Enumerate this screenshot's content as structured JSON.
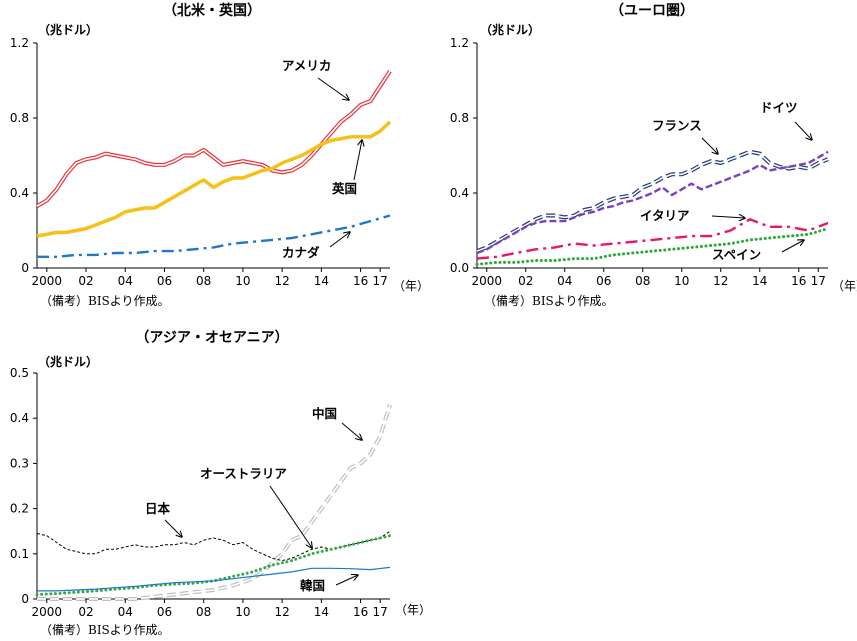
{
  "chart_data": [
    {
      "type": "line",
      "title": "（北米・英国）",
      "ylabel": "（兆ドル）",
      "xunit": "（年）",
      "note": "（備考）BISより作成。",
      "ylim": [
        0,
        1.2
      ],
      "yticks": [
        "0",
        "0.4",
        "0.8",
        "1.2"
      ],
      "yticks_v": [
        0,
        0.4,
        0.8,
        1.2
      ],
      "xlim": [
        1999.5,
        2017.5
      ],
      "xticks": [
        "2000",
        "02",
        "04",
        "06",
        "08",
        "10",
        "12",
        "14",
        "16",
        "17"
      ],
      "xticks_v": [
        2000,
        2002,
        2004,
        2006,
        2008,
        2010,
        2012,
        2014,
        2016,
        2017
      ],
      "series": [
        {
          "name": "アメリカ",
          "color": "#e8353b",
          "style": "double",
          "x": [
            1999.5,
            2000,
            2000.5,
            2001,
            2001.5,
            2002,
            2002.5,
            2003,
            2003.5,
            2004,
            2004.5,
            2005,
            2005.5,
            2006,
            2006.5,
            2007,
            2007.5,
            2008,
            2008.5,
            2009,
            2009.5,
            2010,
            2010.5,
            2011,
            2011.5,
            2012,
            2012.5,
            2013,
            2013.5,
            2014,
            2014.5,
            2015,
            2015.5,
            2016,
            2016.5,
            2017,
            2017.5
          ],
          "y": [
            0.33,
            0.36,
            0.42,
            0.5,
            0.56,
            0.58,
            0.59,
            0.61,
            0.6,
            0.59,
            0.58,
            0.56,
            0.55,
            0.55,
            0.57,
            0.6,
            0.6,
            0.63,
            0.59,
            0.55,
            0.56,
            0.57,
            0.56,
            0.55,
            0.52,
            0.51,
            0.52,
            0.55,
            0.6,
            0.66,
            0.72,
            0.78,
            0.82,
            0.87,
            0.89,
            0.97,
            1.05
          ]
        },
        {
          "name": "英国",
          "color": "#f5c116",
          "style": "thick",
          "x": [
            1999.5,
            2000,
            2000.5,
            2001,
            2001.5,
            2002,
            2002.5,
            2003,
            2003.5,
            2004,
            2004.5,
            2005,
            2005.5,
            2006,
            2006.5,
            2007,
            2007.5,
            2008,
            2008.5,
            2009,
            2009.5,
            2010,
            2010.5,
            2011,
            2011.5,
            2012,
            2012.5,
            2013,
            2013.5,
            2014,
            2014.5,
            2015,
            2015.5,
            2016,
            2016.5,
            2017,
            2017.5
          ],
          "y": [
            0.17,
            0.18,
            0.19,
            0.19,
            0.2,
            0.21,
            0.23,
            0.25,
            0.27,
            0.3,
            0.31,
            0.32,
            0.32,
            0.35,
            0.38,
            0.41,
            0.44,
            0.47,
            0.43,
            0.46,
            0.48,
            0.48,
            0.5,
            0.52,
            0.53,
            0.56,
            0.58,
            0.6,
            0.63,
            0.66,
            0.68,
            0.69,
            0.7,
            0.7,
            0.7,
            0.73,
            0.78
          ]
        },
        {
          "name": "カナダ",
          "color": "#1f77c8",
          "style": "dashdot",
          "x": [
            1999.5,
            2000.5,
            2001.5,
            2002.5,
            2003.5,
            2004.5,
            2005.5,
            2006.5,
            2007.5,
            2008.5,
            2009.5,
            2010.5,
            2011.5,
            2012.5,
            2013.5,
            2014.5,
            2015.5,
            2016.5,
            2017.5
          ],
          "y": [
            0.06,
            0.06,
            0.07,
            0.07,
            0.08,
            0.08,
            0.09,
            0.09,
            0.1,
            0.11,
            0.13,
            0.14,
            0.15,
            0.16,
            0.18,
            0.2,
            0.22,
            0.25,
            0.28
          ]
        }
      ],
      "annotations": [
        "アメリカ",
        "英国",
        "カナダ"
      ]
    },
    {
      "type": "line",
      "title": "（ユーロ圏）",
      "ylabel": "（兆ドル）",
      "xunit": "（年）",
      "note": "（備考）BISより作成。",
      "ylim": [
        0,
        1.2
      ],
      "yticks": [
        "0.0",
        "0.4",
        "0.8",
        "1.2"
      ],
      "yticks_v": [
        0,
        0.4,
        0.8,
        1.2
      ],
      "xlim": [
        1999.5,
        2017.5
      ],
      "xticks": [
        "2000",
        "02",
        "04",
        "06",
        "08",
        "10",
        "12",
        "14",
        "16",
        "17"
      ],
      "xticks_v": [
        2000,
        2002,
        2004,
        2006,
        2008,
        2010,
        2012,
        2014,
        2016,
        2017
      ],
      "series": [
        {
          "name": "フランス",
          "color": "#1f3a7a",
          "style": "hollowdash",
          "x": [
            1999.5,
            2000,
            2000.5,
            2001,
            2001.5,
            2002,
            2002.5,
            2003,
            2003.5,
            2004,
            2004.5,
            2005,
            2005.5,
            2006,
            2006.5,
            2007,
            2007.5,
            2008,
            2008.5,
            2009,
            2009.5,
            2010,
            2010.5,
            2011,
            2011.5,
            2012,
            2012.5,
            2013,
            2013.5,
            2014,
            2014.5,
            2015,
            2015.5,
            2016,
            2016.5,
            2017,
            2017.5
          ],
          "y": [
            0.09,
            0.11,
            0.14,
            0.17,
            0.2,
            0.23,
            0.26,
            0.28,
            0.28,
            0.27,
            0.28,
            0.31,
            0.32,
            0.35,
            0.37,
            0.38,
            0.39,
            0.43,
            0.45,
            0.48,
            0.5,
            0.5,
            0.52,
            0.55,
            0.57,
            0.56,
            0.58,
            0.6,
            0.62,
            0.61,
            0.56,
            0.54,
            0.53,
            0.54,
            0.53,
            0.56,
            0.58
          ]
        },
        {
          "name": "ドイツ",
          "color": "#7b3fbf",
          "style": "dash",
          "x": [
            1999.5,
            2000,
            2000.5,
            2001,
            2001.5,
            2002,
            2002.5,
            2003,
            2003.5,
            2004,
            2004.5,
            2005,
            2005.5,
            2006,
            2006.5,
            2007,
            2007.5,
            2008,
            2008.5,
            2009,
            2009.5,
            2010,
            2010.5,
            2011,
            2011.5,
            2012,
            2012.5,
            2013,
            2013.5,
            2014,
            2014.5,
            2015,
            2015.5,
            2016,
            2016.5,
            2017,
            2017.5
          ],
          "y": [
            0.08,
            0.1,
            0.13,
            0.16,
            0.19,
            0.22,
            0.24,
            0.25,
            0.25,
            0.25,
            0.27,
            0.29,
            0.3,
            0.32,
            0.33,
            0.35,
            0.36,
            0.38,
            0.4,
            0.43,
            0.39,
            0.42,
            0.45,
            0.42,
            0.44,
            0.46,
            0.48,
            0.5,
            0.52,
            0.55,
            0.52,
            0.53,
            0.54,
            0.55,
            0.56,
            0.59,
            0.62
          ]
        },
        {
          "name": "イタリア",
          "color": "#e8176b",
          "style": "dashdot",
          "x": [
            1999.5,
            2000.5,
            2001.5,
            2002.5,
            2003.5,
            2004.5,
            2005.5,
            2006.5,
            2007.5,
            2008.5,
            2009.5,
            2010.5,
            2011.5,
            2012.5,
            2013.5,
            2014.5,
            2015.5,
            2016.5,
            2017.5
          ],
          "y": [
            0.05,
            0.06,
            0.08,
            0.1,
            0.11,
            0.13,
            0.12,
            0.13,
            0.14,
            0.15,
            0.16,
            0.17,
            0.17,
            0.2,
            0.26,
            0.22,
            0.22,
            0.2,
            0.24
          ]
        },
        {
          "name": "スペイン",
          "color": "#2aa83a",
          "style": "dot",
          "x": [
            1999.5,
            2000.5,
            2001.5,
            2002.5,
            2003.5,
            2004.5,
            2005.5,
            2006.5,
            2007.5,
            2008.5,
            2009.5,
            2010.5,
            2011.5,
            2012.5,
            2013.5,
            2014.5,
            2015.5,
            2016.5,
            2017.5
          ],
          "y": [
            0.02,
            0.03,
            0.03,
            0.04,
            0.04,
            0.05,
            0.05,
            0.07,
            0.08,
            0.09,
            0.1,
            0.11,
            0.12,
            0.13,
            0.15,
            0.16,
            0.17,
            0.18,
            0.21
          ]
        }
      ],
      "annotations": [
        "フランス",
        "ドイツ",
        "イタリア",
        "スペイン"
      ]
    },
    {
      "type": "line",
      "title": "（アジア・オセアニア）",
      "ylabel": "（兆ドル）",
      "xunit": "（年）",
      "note": "（備考）BISより作成。",
      "ylim": [
        0,
        0.5
      ],
      "yticks": [
        "0",
        "0.1",
        "0.2",
        "0.3",
        "0.4",
        "0.5"
      ],
      "yticks_v": [
        0,
        0.1,
        0.2,
        0.3,
        0.4,
        0.5
      ],
      "xlim": [
        1999.5,
        2017.5
      ],
      "xticks": [
        "2000",
        "02",
        "04",
        "06",
        "08",
        "10",
        "12",
        "14",
        "16",
        "17"
      ],
      "xticks_v": [
        2000,
        2002,
        2004,
        2006,
        2008,
        2010,
        2012,
        2014,
        2016,
        2017
      ],
      "series": [
        {
          "name": "中国",
          "color": "#bfbfbf",
          "style": "hollowdash",
          "x": [
            1999.5,
            2000.5,
            2001.5,
            2002.5,
            2003.5,
            2004.5,
            2005.5,
            2006.5,
            2007.5,
            2008.5,
            2009.5,
            2010.5,
            2011,
            2011.5,
            2012,
            2012.5,
            2013,
            2013.5,
            2014,
            2014.5,
            2015,
            2015.5,
            2016,
            2016.5,
            2017,
            2017.5
          ],
          "y": [
            0.0,
            0.0,
            0.0,
            0.0,
            0.0,
            0.0,
            0.005,
            0.01,
            0.015,
            0.02,
            0.03,
            0.045,
            0.06,
            0.08,
            0.1,
            0.13,
            0.14,
            0.17,
            0.2,
            0.23,
            0.26,
            0.29,
            0.3,
            0.32,
            0.36,
            0.43
          ]
        },
        {
          "name": "日本",
          "color": "#000000",
          "style": "finedash",
          "x": [
            1999.5,
            2000,
            2000.5,
            2001,
            2001.5,
            2002,
            2002.5,
            2003,
            2003.5,
            2004,
            2004.5,
            2005,
            2005.5,
            2006,
            2006.5,
            2007,
            2007.5,
            2008,
            2008.5,
            2009,
            2009.5,
            2010,
            2010.5,
            2011,
            2011.5,
            2012,
            2012.5,
            2013,
            2013.5,
            2014,
            2014.5,
            2015,
            2015.5,
            2016,
            2016.5,
            2017,
            2017.5
          ],
          "y": [
            0.145,
            0.14,
            0.125,
            0.11,
            0.105,
            0.1,
            0.1,
            0.11,
            0.11,
            0.115,
            0.12,
            0.115,
            0.115,
            0.12,
            0.12,
            0.125,
            0.12,
            0.13,
            0.135,
            0.13,
            0.12,
            0.125,
            0.11,
            0.1,
            0.09,
            0.085,
            0.09,
            0.1,
            0.11,
            0.115,
            0.11,
            0.115,
            0.12,
            0.125,
            0.13,
            0.135,
            0.15
          ]
        },
        {
          "name": "オーストラリア",
          "color": "#3aa84a",
          "style": "dot",
          "x": [
            1999.5,
            2000.5,
            2001.5,
            2002.5,
            2003.5,
            2004.5,
            2005.5,
            2006.5,
            2007.5,
            2008.5,
            2009.5,
            2010.5,
            2011.5,
            2012.5,
            2013.5,
            2014.5,
            2015.5,
            2016.5,
            2017.5
          ],
          "y": [
            0.01,
            0.012,
            0.015,
            0.018,
            0.022,
            0.025,
            0.03,
            0.033,
            0.035,
            0.04,
            0.05,
            0.06,
            0.075,
            0.085,
            0.1,
            0.11,
            0.12,
            0.13,
            0.14
          ]
        },
        {
          "name": "韓国",
          "color": "#1f77c8",
          "style": "thin",
          "x": [
            1999.5,
            2000.5,
            2001.5,
            2002.5,
            2003.5,
            2004.5,
            2005.5,
            2006.5,
            2007.5,
            2008.5,
            2009.5,
            2010.5,
            2011.5,
            2012.5,
            2013.5,
            2014.5,
            2015.5,
            2016.5,
            2017.5
          ],
          "y": [
            0.018,
            0.018,
            0.02,
            0.022,
            0.025,
            0.028,
            0.032,
            0.036,
            0.038,
            0.04,
            0.045,
            0.05,
            0.055,
            0.06,
            0.068,
            0.068,
            0.067,
            0.065,
            0.07
          ]
        }
      ],
      "annotations": [
        "中国",
        "日本",
        "オーストラリア",
        "韓国"
      ]
    }
  ]
}
